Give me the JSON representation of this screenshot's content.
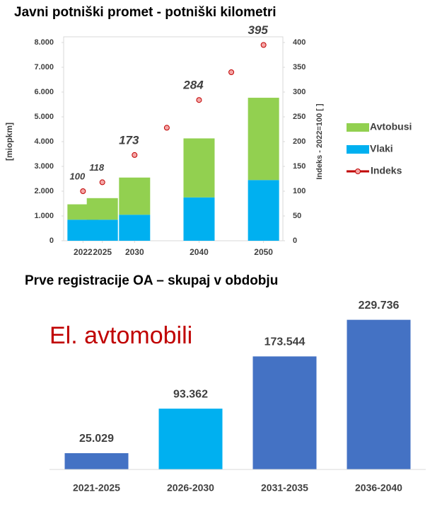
{
  "chart_data": [
    {
      "type": "bar",
      "title": "Javni potniški promet - potniški kilometri",
      "x": [
        2022,
        2025,
        2030,
        2035,
        2040,
        2045,
        2050
      ],
      "xlim": [
        2019,
        2053
      ],
      "xticks": [
        2022,
        2025,
        2030,
        2040,
        2050
      ],
      "stacked": true,
      "series": [
        {
          "name": "Vlaki",
          "type": "bar",
          "color": "#00b0f0",
          "values": [
            850,
            850,
            1050,
            null,
            1750,
            null,
            2450
          ]
        },
        {
          "name": "Avtobusi",
          "type": "bar",
          "color": "#92d050",
          "values": [
            620,
            870,
            1500,
            null,
            2380,
            null,
            3320
          ]
        },
        {
          "name": "Indeks",
          "type": "line",
          "axis": "y2",
          "color": "#c00000",
          "values": [
            100,
            118,
            173,
            228,
            284,
            340,
            395
          ],
          "value_labels": [
            "100",
            "118",
            "173",
            null,
            "284",
            null,
            "395"
          ]
        }
      ],
      "legend_order": [
        "Avtobusi",
        "Vlaki",
        "Indeks"
      ],
      "legend": "right",
      "ylabel": "[miopkm]",
      "y2label": "Indeks - 2022=100 [ ]",
      "ylim": [
        0,
        8000
      ],
      "yticks": [
        0,
        {
          "value": 1000,
          "label": "1.000"
        },
        {
          "value": 2000,
          "label": "2.000"
        },
        {
          "value": 3000,
          "label": "3.000"
        },
        {
          "value": 4000,
          "label": "4.000"
        },
        {
          "value": 5000,
          "label": "5.000"
        },
        {
          "value": 6000,
          "label": "6.000"
        },
        {
          "value": 7000,
          "label": "7.000"
        },
        {
          "value": 8000,
          "label": "8.000"
        }
      ],
      "y2lim": [
        0,
        400
      ],
      "y2ticks": [
        0,
        50,
        100,
        150,
        200,
        250,
        300,
        350,
        400
      ]
    },
    {
      "type": "bar",
      "title": "Prve registracije OA – skupaj v obdobju",
      "annotation": "El. avtomobili",
      "categories": [
        "2021-2025",
        "2026-2030",
        "2031-2035",
        "2036-2040"
      ],
      "values": [
        25029,
        93362,
        173544,
        229736
      ],
      "value_labels": [
        "25.029",
        "93.362",
        "173.544",
        "229.736"
      ],
      "colors": [
        "#4472c4",
        "#00b0f0",
        "#4472c4",
        "#4472c4"
      ],
      "ylim": [
        0,
        250000
      ]
    }
  ]
}
